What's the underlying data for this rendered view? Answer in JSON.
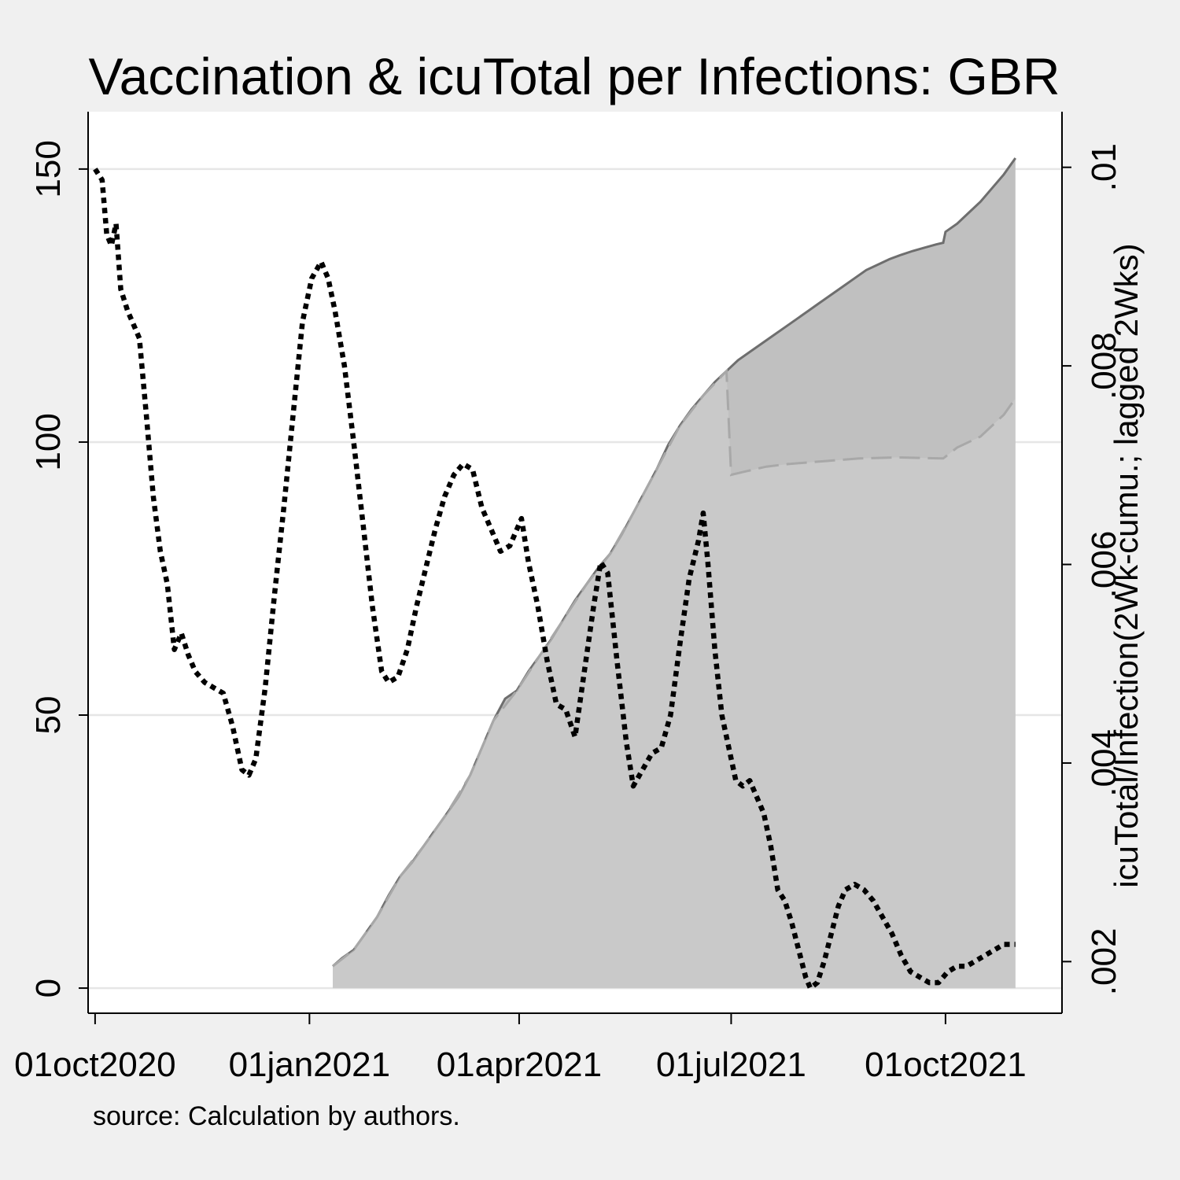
{
  "chart_data": {
    "type": "line",
    "title": "Vaccination & icuTotal per Infections: GBR",
    "note": "source: Calculation by authors.",
    "xlabel": "",
    "x_axis": {
      "type": "date",
      "range": [
        "2020-09-28",
        "2021-11-20"
      ],
      "ticks": [
        {
          "date": "2020-10-01",
          "label": "01oct2020"
        },
        {
          "date": "2021-01-01",
          "label": "01jan2021"
        },
        {
          "date": "2021-04-01",
          "label": "01apr2021"
        },
        {
          "date": "2021-07-01",
          "label": "01jul2021"
        },
        {
          "date": "2021-10-01",
          "label": "01oct2021"
        }
      ]
    },
    "y_left": {
      "label": "",
      "range": [
        -4.6,
        160.5
      ],
      "ticks": [
        0,
        50,
        100,
        150
      ],
      "tick_labels": [
        "0",
        "50",
        "100",
        "150"
      ],
      "grid": true
    },
    "y_right": {
      "label": "icuTotal/Infection(2Wk-cumu.; lagged 2Wks)",
      "range": [
        0.00148,
        0.01056
      ],
      "ticks": [
        0.002,
        0.004,
        0.006,
        0.008,
        0.01
      ],
      "tick_labels": [
        ".002",
        ".004",
        ".006",
        ".008",
        ".01"
      ]
    },
    "series": [
      {
        "axis": "left",
        "style": "area-solid",
        "points": [
          [
            "2021-01-11",
            4
          ],
          [
            "2021-01-15",
            5.5
          ],
          [
            "2021-01-20",
            7
          ],
          [
            "2021-01-25",
            10
          ],
          [
            "2021-01-30",
            13
          ],
          [
            "2021-02-04",
            17
          ],
          [
            "2021-02-09",
            20.5
          ],
          [
            "2021-02-14",
            23
          ],
          [
            "2021-02-19",
            26
          ],
          [
            "2021-02-24",
            29
          ],
          [
            "2021-03-01",
            32
          ],
          [
            "2021-03-06",
            35
          ],
          [
            "2021-03-11",
            39
          ],
          [
            "2021-03-16",
            44
          ],
          [
            "2021-03-21",
            49
          ],
          [
            "2021-03-26",
            53
          ],
          [
            "2021-03-31",
            54.5
          ],
          [
            "2021-04-05",
            58
          ],
          [
            "2021-04-10",
            61
          ],
          [
            "2021-04-15",
            64
          ],
          [
            "2021-04-20",
            67.5
          ],
          [
            "2021-04-25",
            71
          ],
          [
            "2021-04-30",
            74
          ],
          [
            "2021-05-05",
            77
          ],
          [
            "2021-05-10",
            79.5
          ],
          [
            "2021-05-15",
            83
          ],
          [
            "2021-05-20",
            87
          ],
          [
            "2021-05-25",
            91
          ],
          [
            "2021-05-30",
            95
          ],
          [
            "2021-06-04",
            99.5
          ],
          [
            "2021-06-09",
            103
          ],
          [
            "2021-06-14",
            106
          ],
          [
            "2021-06-19",
            108.5
          ],
          [
            "2021-06-24",
            111
          ],
          [
            "2021-06-29",
            113
          ],
          [
            "2021-07-04",
            115
          ],
          [
            "2021-07-09",
            116.5
          ],
          [
            "2021-07-14",
            118
          ],
          [
            "2021-07-19",
            119.5
          ],
          [
            "2021-07-24",
            121
          ],
          [
            "2021-07-29",
            122.5
          ],
          [
            "2021-08-03",
            124
          ],
          [
            "2021-08-08",
            125.5
          ],
          [
            "2021-08-13",
            127
          ],
          [
            "2021-08-18",
            128.5
          ],
          [
            "2021-08-23",
            130
          ],
          [
            "2021-08-28",
            131.5
          ],
          [
            "2021-09-02",
            132.5
          ],
          [
            "2021-09-07",
            133.5
          ],
          [
            "2021-09-12",
            134.3
          ],
          [
            "2021-09-17",
            135
          ],
          [
            "2021-09-22",
            135.6
          ],
          [
            "2021-09-27",
            136.2
          ],
          [
            "2021-09-30",
            136.5
          ],
          [
            "2021-10-01",
            138.5
          ],
          [
            "2021-10-06",
            140
          ],
          [
            "2021-10-11",
            142
          ],
          [
            "2021-10-16",
            144
          ],
          [
            "2021-10-21",
            146.5
          ],
          [
            "2021-10-26",
            149
          ],
          [
            "2021-10-31",
            152
          ]
        ]
      },
      {
        "axis": "left",
        "style": "area-dashed",
        "points": [
          [
            "2021-01-11",
            4
          ],
          [
            "2021-01-20",
            7
          ],
          [
            "2021-01-30",
            13
          ],
          [
            "2021-02-09",
            20.5
          ],
          [
            "2021-02-19",
            26
          ],
          [
            "2021-03-01",
            32
          ],
          [
            "2021-03-11",
            39
          ],
          [
            "2021-03-21",
            49
          ],
          [
            "2021-03-31",
            54.5
          ],
          [
            "2021-04-10",
            61
          ],
          [
            "2021-04-20",
            67.5
          ],
          [
            "2021-04-30",
            74
          ],
          [
            "2021-05-10",
            79.5
          ],
          [
            "2021-05-20",
            87
          ],
          [
            "2021-05-30",
            95
          ],
          [
            "2021-06-09",
            103
          ],
          [
            "2021-06-19",
            108.5
          ],
          [
            "2021-06-29",
            113
          ],
          [
            "2021-07-01",
            94
          ],
          [
            "2021-07-06",
            94.5
          ],
          [
            "2021-07-16",
            95.5
          ],
          [
            "2021-07-26",
            96
          ],
          [
            "2021-08-10",
            96.5
          ],
          [
            "2021-08-25",
            97
          ],
          [
            "2021-09-10",
            97.2
          ],
          [
            "2021-09-30",
            97
          ],
          [
            "2021-10-06",
            99
          ],
          [
            "2021-10-16",
            101
          ],
          [
            "2021-10-26",
            105
          ],
          [
            "2021-10-31",
            108
          ]
        ]
      },
      {
        "axis": "left",
        "style": "dotted",
        "points": [
          [
            "2020-10-01",
            150
          ],
          [
            "2020-10-04",
            148
          ],
          [
            "2020-10-06",
            138
          ],
          [
            "2020-10-08",
            136
          ],
          [
            "2020-10-10",
            140
          ],
          [
            "2020-10-12",
            128
          ],
          [
            "2020-10-15",
            124
          ],
          [
            "2020-10-17",
            122
          ],
          [
            "2020-10-20",
            119
          ],
          [
            "2020-10-23",
            105
          ],
          [
            "2020-10-26",
            90
          ],
          [
            "2020-10-29",
            80
          ],
          [
            "2020-11-01",
            74
          ],
          [
            "2020-11-04",
            62
          ],
          [
            "2020-11-07",
            65
          ],
          [
            "2020-11-10",
            61
          ],
          [
            "2020-11-13",
            58
          ],
          [
            "2020-11-17",
            56
          ],
          [
            "2020-11-21",
            55
          ],
          [
            "2020-11-25",
            54
          ],
          [
            "2020-11-29",
            48
          ],
          [
            "2020-12-03",
            40
          ],
          [
            "2020-12-06",
            39
          ],
          [
            "2020-12-09",
            42
          ],
          [
            "2020-12-13",
            55
          ],
          [
            "2020-12-17",
            72
          ],
          [
            "2020-12-21",
            88
          ],
          [
            "2020-12-25",
            105
          ],
          [
            "2020-12-29",
            122
          ],
          [
            "2021-01-02",
            130
          ],
          [
            "2021-01-06",
            133
          ],
          [
            "2021-01-09",
            130
          ],
          [
            "2021-01-12",
            124
          ],
          [
            "2021-01-16",
            114
          ],
          [
            "2021-01-20",
            100
          ],
          [
            "2021-01-24",
            85
          ],
          [
            "2021-01-28",
            70
          ],
          [
            "2021-02-01",
            58
          ],
          [
            "2021-02-04",
            56
          ],
          [
            "2021-02-08",
            57
          ],
          [
            "2021-02-12",
            62
          ],
          [
            "2021-02-16",
            70
          ],
          [
            "2021-02-20",
            77
          ],
          [
            "2021-02-24",
            84
          ],
          [
            "2021-02-28",
            90
          ],
          [
            "2021-03-04",
            94
          ],
          [
            "2021-03-08",
            96
          ],
          [
            "2021-03-12",
            95
          ],
          [
            "2021-03-16",
            88
          ],
          [
            "2021-03-20",
            84
          ],
          [
            "2021-03-24",
            80
          ],
          [
            "2021-03-28",
            81
          ],
          [
            "2021-03-31",
            84
          ],
          [
            "2021-04-02",
            86
          ],
          [
            "2021-04-05",
            78
          ],
          [
            "2021-04-09",
            70
          ],
          [
            "2021-04-13",
            60
          ],
          [
            "2021-04-17",
            52
          ],
          [
            "2021-04-21",
            51
          ],
          [
            "2021-04-25",
            46
          ],
          [
            "2021-04-29",
            58
          ],
          [
            "2021-05-03",
            70
          ],
          [
            "2021-05-06",
            78
          ],
          [
            "2021-05-09",
            76
          ],
          [
            "2021-05-13",
            60
          ],
          [
            "2021-05-17",
            45
          ],
          [
            "2021-05-20",
            37
          ],
          [
            "2021-05-24",
            40
          ],
          [
            "2021-05-28",
            43
          ],
          [
            "2021-06-01",
            44
          ],
          [
            "2021-06-05",
            50
          ],
          [
            "2021-06-09",
            63
          ],
          [
            "2021-06-13",
            75
          ],
          [
            "2021-06-17",
            82
          ],
          [
            "2021-06-19",
            87
          ],
          [
            "2021-06-21",
            78
          ],
          [
            "2021-06-24",
            62
          ],
          [
            "2021-06-27",
            50
          ],
          [
            "2021-06-30",
            44
          ],
          [
            "2021-07-03",
            38
          ],
          [
            "2021-07-06",
            37
          ],
          [
            "2021-07-09",
            38
          ],
          [
            "2021-07-12",
            35
          ],
          [
            "2021-07-15",
            32
          ],
          [
            "2021-07-18",
            26
          ],
          [
            "2021-07-21",
            18
          ],
          [
            "2021-07-24",
            16
          ],
          [
            "2021-07-27",
            12
          ],
          [
            "2021-07-30",
            7
          ],
          [
            "2021-08-02",
            2
          ],
          [
            "2021-08-04",
            0
          ],
          [
            "2021-08-07",
            1
          ],
          [
            "2021-08-10",
            5
          ],
          [
            "2021-08-13",
            10
          ],
          [
            "2021-08-16",
            15
          ],
          [
            "2021-08-19",
            18
          ],
          [
            "2021-08-23",
            19
          ],
          [
            "2021-08-27",
            18
          ],
          [
            "2021-08-31",
            16
          ],
          [
            "2021-09-04",
            13
          ],
          [
            "2021-09-08",
            10
          ],
          [
            "2021-09-12",
            6
          ],
          [
            "2021-09-16",
            3
          ],
          [
            "2021-09-20",
            2
          ],
          [
            "2021-09-24",
            1
          ],
          [
            "2021-09-28",
            1
          ],
          [
            "2021-10-02",
            3
          ],
          [
            "2021-10-06",
            4
          ],
          [
            "2021-10-10",
            4
          ],
          [
            "2021-10-14",
            5
          ],
          [
            "2021-10-18",
            6
          ],
          [
            "2021-10-22",
            7
          ],
          [
            "2021-10-26",
            8
          ],
          [
            "2021-10-31",
            8
          ]
        ]
      }
    ]
  }
}
